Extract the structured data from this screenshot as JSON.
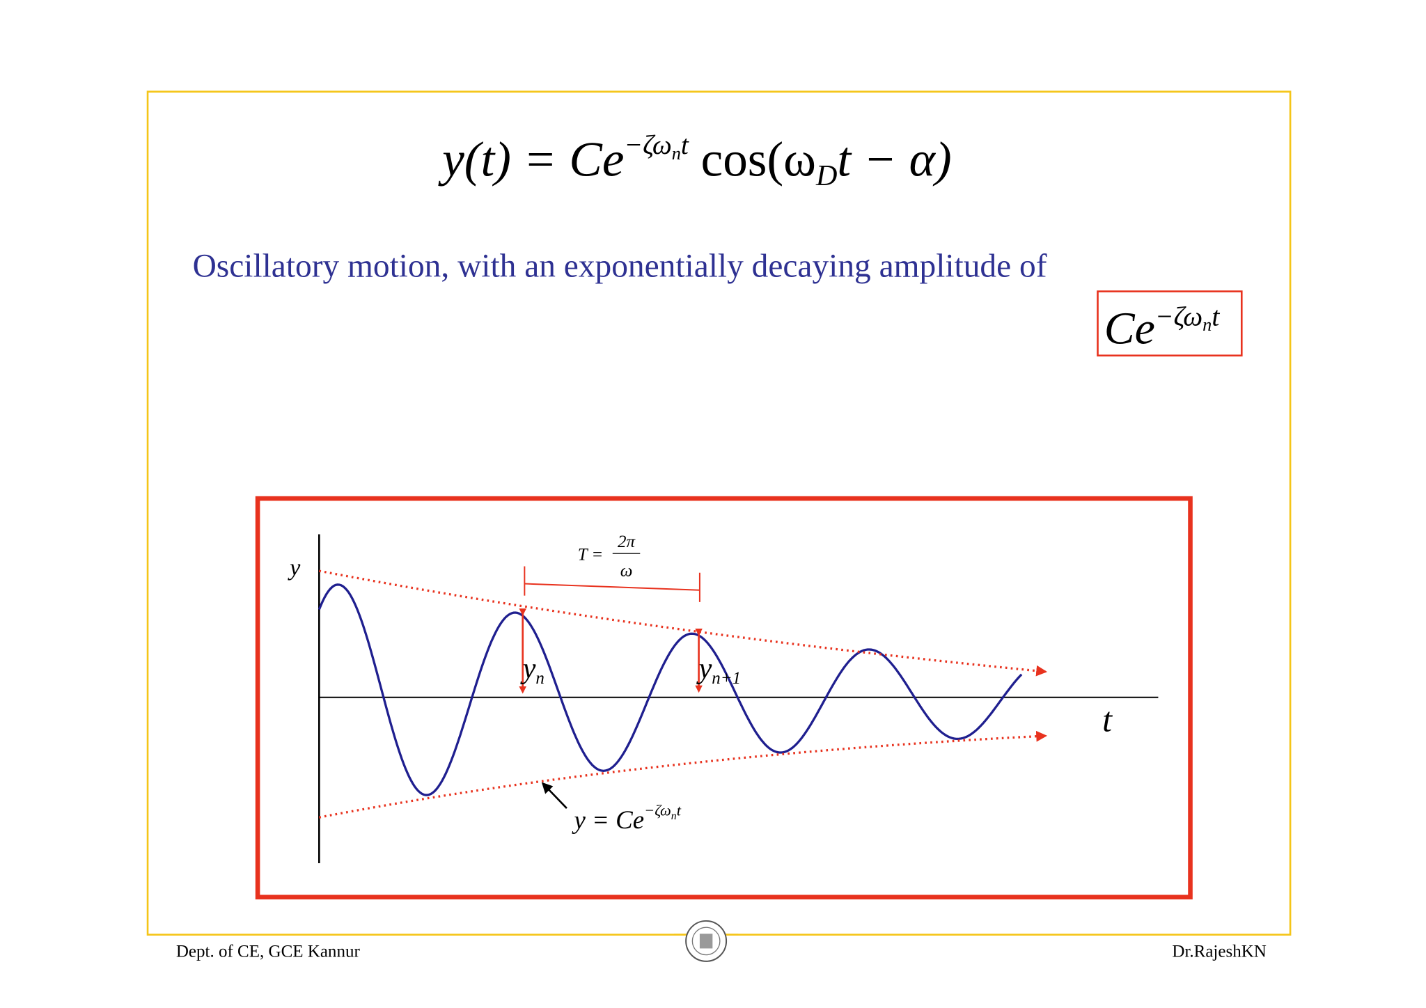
{
  "equation": [
    "y(t) = Ce",
    "−ζω",
    "n",
    "t",
    " cos(ω",
    "D",
    "t − α)"
  ],
  "description": "Oscillatory motion, with an exponentially decaying amplitude of",
  "amplitude": [
    "Ce",
    "−ζω",
    "n",
    "t"
  ],
  "graph": {
    "y_axis": "y",
    "x_axis": "t",
    "period": {
      "lhs": "T =",
      "numerator": "2π",
      "denominator": "ω"
    },
    "yn": [
      "y",
      "n"
    ],
    "yn1": [
      "y",
      "n+1"
    ],
    "envelope": [
      "y = Ce",
      "−ζω",
      "n",
      "t"
    ]
  },
  "footer": {
    "left": "Dept. of CE, GCE Kannur",
    "right": "Dr.RajeshKN"
  }
}
